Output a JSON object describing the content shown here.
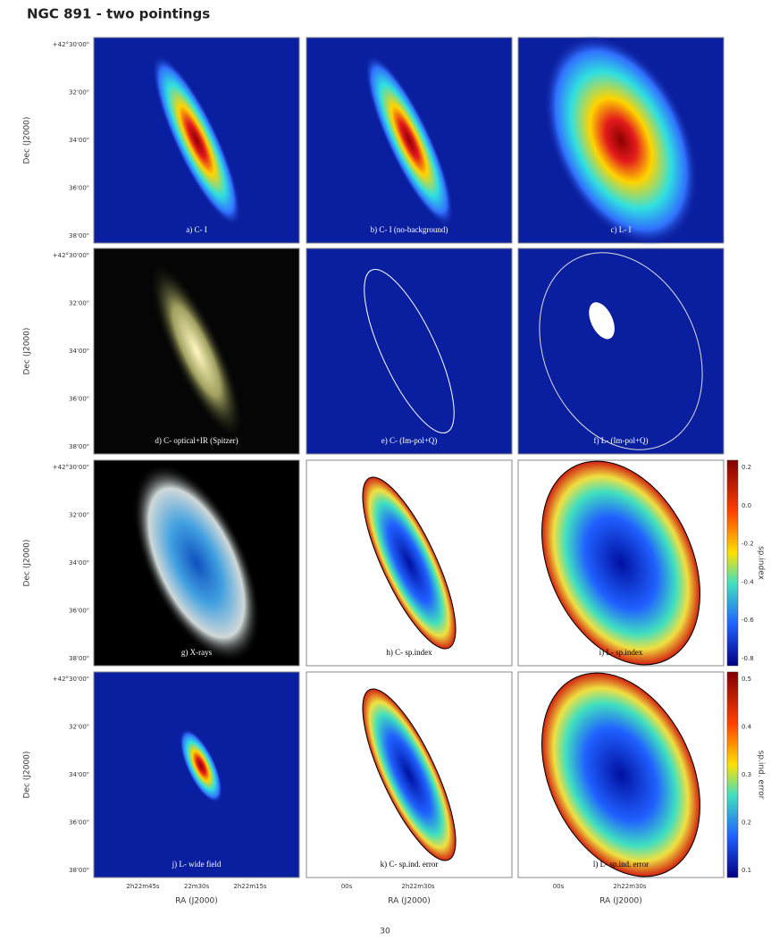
{
  "title": "NGC 891 - two pointings",
  "panels": [
    "a) C- I",
    "b) C- I (no-background)",
    "c) L- I",
    "d) C- optical+IR (Spitzer)",
    "e) C- (Im-pol+Q)",
    "f) L- (Im-pol+Q)",
    "g) X-rays",
    "h) C- sp.index",
    "i) L- sp.index",
    "j) L- wide field",
    "k) C- sp.ind. error",
    "l) L- sp.ind. error"
  ],
  "y_axis_label": "Dec (J2000)",
  "x_axis_label": "RA (J2000)",
  "dec_ticks": [
    "38'00\"",
    "36'00\"",
    "34'00\"",
    "32'00\"",
    "+42°30'00\""
  ],
  "ra_ticks": [
    [
      "2h22m45s",
      "22m30s",
      "2h22m15s"
    ],
    [
      "00s",
      "2h22m30s"
    ],
    [
      "00s",
      "2h22m30s"
    ]
  ],
  "colorbars": [
    {
      "label": "sp.index",
      "ticks": [
        "0.2",
        "0.0",
        "-0.2",
        "-0.4",
        "-0.6",
        "-0.8"
      ]
    },
    {
      "label": "sp.ind. error",
      "ticks": [
        "0.5",
        "0.4",
        "0.3",
        "0.2",
        "0.1"
      ]
    }
  ],
  "page_number": "30"
}
